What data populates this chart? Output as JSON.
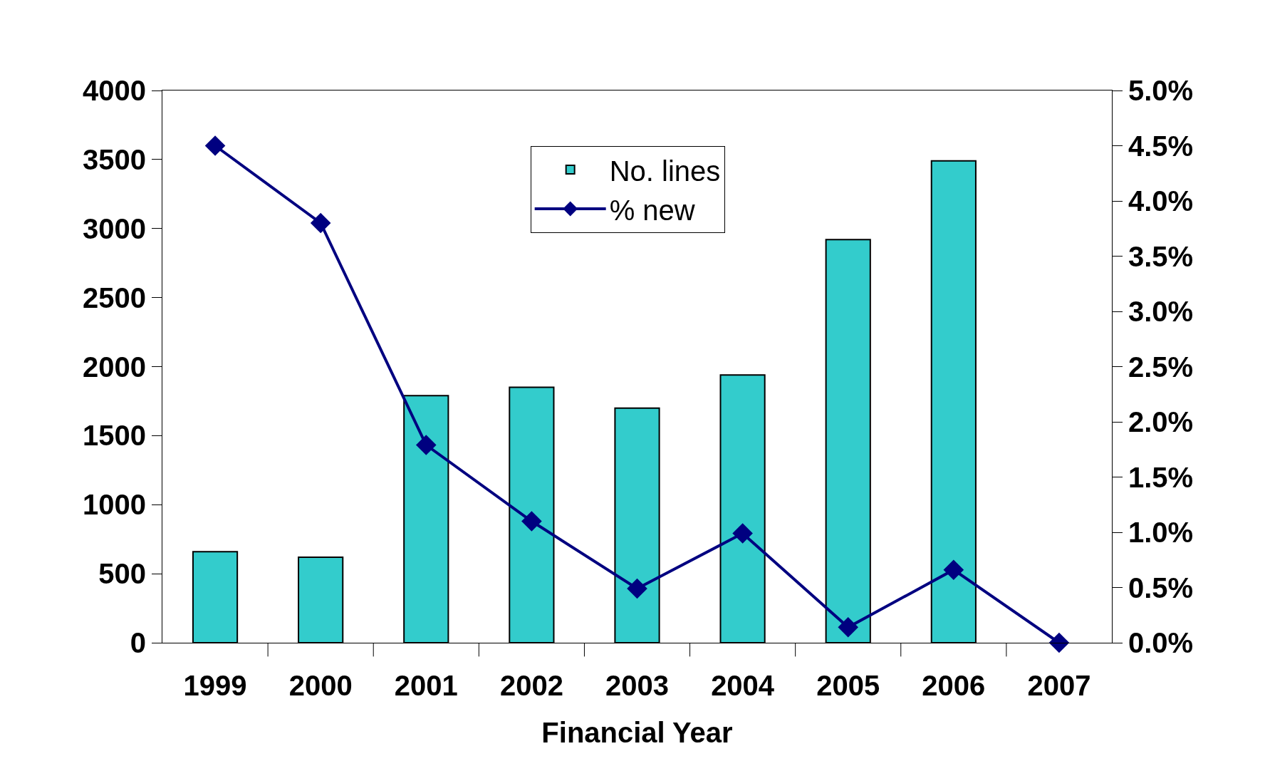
{
  "chart_data": {
    "type": "bar",
    "xlabel": "Financial Year",
    "categories": [
      "1999",
      "2000",
      "2001",
      "2002",
      "2003",
      "2004",
      "2005",
      "2006",
      "2007"
    ],
    "series": [
      {
        "name": "No. lines",
        "color": "#33cccc",
        "values": [
          660,
          620,
          1790,
          1850,
          1700,
          1940,
          2920,
          3490,
          null
        ]
      },
      {
        "name": "% new",
        "type": "line",
        "axis": "y2",
        "color": "#000080",
        "marker": "diamond",
        "values": [
          4.5,
          3.8,
          1.79,
          1.1,
          0.49,
          0.99,
          0.14,
          0.66,
          0
        ]
      }
    ],
    "ylim": [
      0,
      4000
    ],
    "yticks": [
      0,
      500,
      1000,
      1500,
      2000,
      2500,
      3000,
      3500,
      4000
    ],
    "y2lim": [
      0,
      5
    ],
    "y2ticks": [
      {
        "value": 0,
        "label": "0.0%"
      },
      {
        "value": 0.5,
        "label": "0.5%"
      },
      {
        "value": 1,
        "label": "1.0%"
      },
      {
        "value": 1.5,
        "label": "1.5%"
      },
      {
        "value": 2,
        "label": "2.0%"
      },
      {
        "value": 2.5,
        "label": "2.5%"
      },
      {
        "value": 3,
        "label": "3.0%"
      },
      {
        "value": 3.5,
        "label": "3.5%"
      },
      {
        "value": 4,
        "label": "4.0%"
      },
      {
        "value": 4.5,
        "label": "4.5%"
      },
      {
        "value": 5,
        "label": "5.0%"
      }
    ],
    "grid": false,
    "legend": "top"
  }
}
